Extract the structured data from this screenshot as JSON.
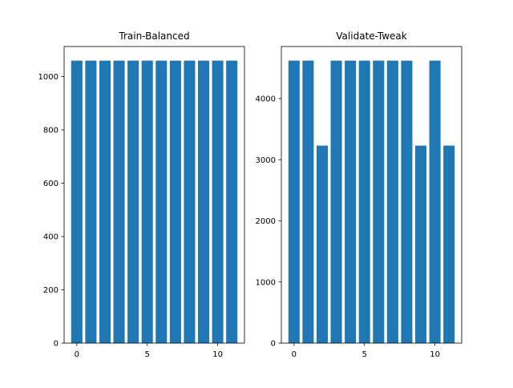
{
  "chart_data": [
    {
      "type": "bar",
      "title": "Train-Balanced",
      "xlabel": "",
      "ylabel": "",
      "x": [
        0,
        1,
        2,
        3,
        4,
        5,
        6,
        7,
        8,
        9,
        10,
        11
      ],
      "values": [
        1060,
        1060,
        1060,
        1060,
        1060,
        1060,
        1060,
        1060,
        1060,
        1060,
        1060,
        1060
      ],
      "xlim": [
        -0.9,
        11.9
      ],
      "ylim": [
        0,
        1113
      ],
      "xticks": [
        0,
        5,
        10
      ],
      "yticks": [
        0,
        200,
        400,
        600,
        800,
        1000
      ],
      "grid": false,
      "color": "#1f77b4"
    },
    {
      "type": "bar",
      "title": "Validate-Tweak",
      "xlabel": "",
      "ylabel": "",
      "x": [
        0,
        1,
        2,
        3,
        4,
        5,
        6,
        7,
        8,
        9,
        10,
        11
      ],
      "values": [
        4620,
        4620,
        3230,
        4620,
        4620,
        4620,
        4620,
        4620,
        4620,
        3230,
        4620,
        3230
      ],
      "xlim": [
        -0.9,
        11.9
      ],
      "ylim": [
        0,
        4851
      ],
      "xticks": [
        0,
        5,
        10
      ],
      "yticks": [
        0,
        1000,
        2000,
        3000,
        4000
      ],
      "grid": false,
      "color": "#1f77b4"
    }
  ]
}
